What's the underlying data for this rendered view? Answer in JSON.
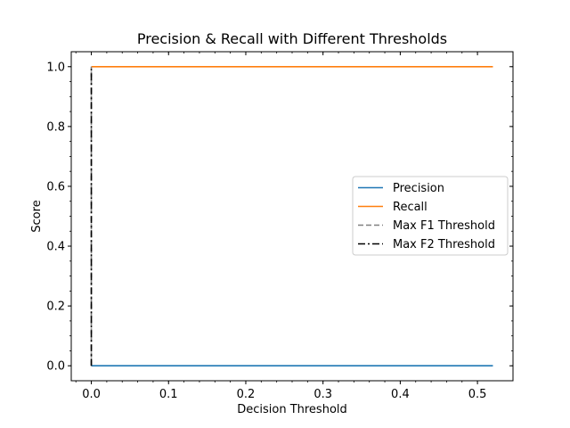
{
  "chart_data": {
    "type": "line",
    "title": "Precision & Recall with Different Thresholds",
    "xlabel": "Decision Threshold",
    "ylabel": "Score",
    "xlim": [
      -0.026,
      0.546
    ],
    "ylim": [
      -0.05,
      1.05
    ],
    "xticks": [
      0.0,
      0.1,
      0.2,
      0.3,
      0.4,
      0.5
    ],
    "xtick_labels": [
      "0.0",
      "0.1",
      "0.2",
      "0.3",
      "0.4",
      "0.5"
    ],
    "yticks": [
      0.0,
      0.2,
      0.4,
      0.6,
      0.8,
      1.0
    ],
    "ytick_labels": [
      "0.0",
      "0.2",
      "0.4",
      "0.6",
      "0.8",
      "1.0"
    ],
    "grid": false,
    "legend_position": "center-right",
    "series": [
      {
        "name": "Precision",
        "color": "#1f77b4",
        "style": "solid",
        "x": [
          0.0,
          0.52
        ],
        "y": [
          0.0,
          0.0
        ]
      },
      {
        "name": "Recall",
        "color": "#ff7f0e",
        "style": "solid",
        "x": [
          0.0,
          0.52
        ],
        "y": [
          1.0,
          1.0
        ]
      }
    ],
    "vlines": [
      {
        "name": "Max F1 Threshold",
        "color": "#808080",
        "style": "dashed",
        "x": 0.0,
        "y": [
          0.0,
          1.0
        ]
      },
      {
        "name": "Max F2 Threshold",
        "color": "#000000",
        "style": "dashdot",
        "x": 0.0,
        "y": [
          0.0,
          1.0
        ]
      }
    ]
  }
}
